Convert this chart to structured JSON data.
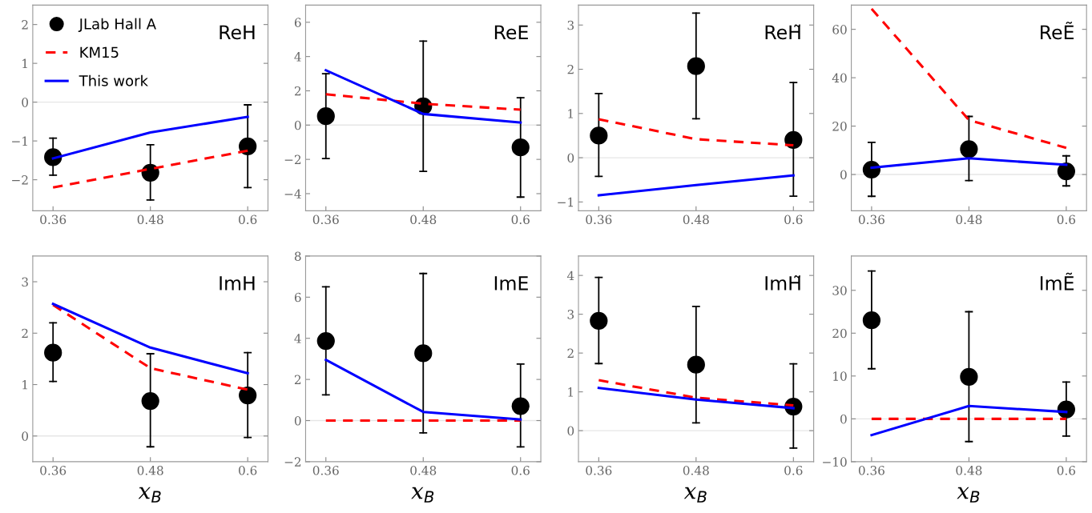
{
  "chart_data": [
    {
      "type": "scatter",
      "title": "ReH",
      "x": [
        0.36,
        0.48,
        0.6
      ],
      "xlim": [
        0.335,
        0.625
      ],
      "xticks": [
        0.36,
        0.48,
        0.6
      ],
      "ylim": [
        -2.8,
        2.5
      ],
      "yticks": [
        {
          "value": -2,
          "label": "−2"
        },
        {
          "value": -1,
          "label": "−1"
        },
        0,
        1,
        2
      ],
      "legend": "top left",
      "ref_lines": [
        {
          "axis": "y",
          "value": 0,
          "color": "#e6e6e6"
        }
      ],
      "series": [
        {
          "name": "JLab Hall A",
          "marker": "circle",
          "color": "#000000",
          "values": [
            -1.42,
            -1.82,
            -1.14
          ],
          "errors": [
            [
              -1.88,
              -0.93
            ],
            [
              -2.52,
              -1.1
            ],
            [
              -2.2,
              -0.07
            ]
          ]
        },
        {
          "name": "KM15",
          "type": "line",
          "color": "#ff0000",
          "line_style": "dashed",
          "values": [
            -2.2,
            -1.72,
            -1.25
          ]
        },
        {
          "name": "This work",
          "type": "line",
          "color": "#0000ff",
          "line_style": "solid",
          "values": [
            -1.45,
            -0.78,
            -0.38
          ]
        }
      ]
    },
    {
      "type": "scatter",
      "title": "ReE",
      "x": [
        0.36,
        0.48,
        0.6
      ],
      "xlim": [
        0.335,
        0.625
      ],
      "xticks": [
        0.36,
        0.48,
        0.6
      ],
      "ylim": [
        -5,
        7
      ],
      "yticks": [
        {
          "value": -4,
          "label": "−4"
        },
        {
          "value": -2,
          "label": "−2"
        },
        0,
        2,
        4,
        6
      ],
      "ref_lines": [
        {
          "axis": "y",
          "value": 0,
          "color": "#e6e6e6"
        }
      ],
      "series": [
        {
          "marker": "circle",
          "color": "#000000",
          "values": [
            0.52,
            1.1,
            -1.3
          ],
          "errors": [
            [
              -1.95,
              3.0
            ],
            [
              -2.7,
              4.9
            ],
            [
              -4.2,
              1.6
            ]
          ]
        },
        {
          "type": "line",
          "color": "#ff0000",
          "line_style": "dashed",
          "values": [
            1.8,
            1.25,
            0.9
          ]
        },
        {
          "type": "line",
          "color": "#0000ff",
          "line_style": "solid",
          "values": [
            3.2,
            0.65,
            0.15
          ]
        }
      ]
    },
    {
      "type": "scatter",
      "title": "ReH̃",
      "x": [
        0.36,
        0.48,
        0.6
      ],
      "xlim": [
        0.335,
        0.625
      ],
      "xticks": [
        0.36,
        0.48,
        0.6
      ],
      "ylim": [
        -1.2,
        3.45
      ],
      "yticks": [
        {
          "value": -1,
          "label": "−1"
        },
        0,
        1,
        2,
        3
      ],
      "ref_lines": [
        {
          "axis": "y",
          "value": 0,
          "color": "#e6e6e6"
        }
      ],
      "series": [
        {
          "marker": "circle",
          "color": "#000000",
          "values": [
            0.5,
            2.07,
            0.4
          ],
          "errors": [
            [
              -0.42,
              1.45
            ],
            [
              0.88,
              3.27
            ],
            [
              -0.87,
              1.7
            ]
          ]
        },
        {
          "type": "line",
          "color": "#ff0000",
          "line_style": "dashed",
          "values": [
            0.87,
            0.42,
            0.28
          ]
        },
        {
          "type": "line",
          "color": "#0000ff",
          "line_style": "solid",
          "values": [
            -0.85,
            -0.62,
            -0.4
          ]
        }
      ]
    },
    {
      "type": "scatter",
      "title": "ReẼ",
      "x": [
        0.36,
        0.48,
        0.6
      ],
      "xlim": [
        0.335,
        0.625
      ],
      "xticks": [
        0.36,
        0.48,
        0.6
      ],
      "ylim": [
        -15,
        70
      ],
      "yticks": [
        0,
        20,
        40,
        60
      ],
      "ref_lines": [
        {
          "axis": "y",
          "value": 0,
          "color": "#e6e6e6"
        }
      ],
      "series": [
        {
          "marker": "circle",
          "color": "#000000",
          "values": [
            2,
            10.5,
            1.3
          ],
          "errors": [
            [
              -9,
              13.3
            ],
            [
              -2.5,
              24
            ],
            [
              -4.7,
              7.7
            ]
          ]
        },
        {
          "type": "line",
          "color": "#ff0000",
          "line_style": "dashed",
          "values": [
            68.5,
            22.5,
            11
          ]
        },
        {
          "type": "line",
          "color": "#0000ff",
          "line_style": "solid",
          "values": [
            2.8,
            6.7,
            4
          ]
        }
      ]
    },
    {
      "type": "scatter",
      "title": "ImH",
      "xlabel": "x$_{B}$",
      "x": [
        0.36,
        0.48,
        0.6
      ],
      "xlim": [
        0.335,
        0.625
      ],
      "xticks": [
        0.36,
        0.48,
        0.6
      ],
      "ylim": [
        -0.5,
        3.5
      ],
      "yticks": [
        0,
        1,
        2,
        3
      ],
      "ref_lines": [
        {
          "axis": "y",
          "value": 0,
          "color": "#e6e6e6"
        }
      ],
      "series": [
        {
          "marker": "circle",
          "color": "#000000",
          "values": [
            1.62,
            0.68,
            0.79
          ],
          "errors": [
            [
              1.06,
              2.2
            ],
            [
              -0.21,
              1.6
            ],
            [
              -0.03,
              1.62
            ]
          ]
        },
        {
          "type": "line",
          "color": "#ff0000",
          "line_style": "dashed",
          "values": [
            2.55,
            1.32,
            0.9
          ]
        },
        {
          "type": "line",
          "color": "#0000ff",
          "line_style": "solid",
          "values": [
            2.57,
            1.72,
            1.22
          ]
        }
      ]
    },
    {
      "type": "scatter",
      "title": "ImE",
      "xlabel": "x$_{B}$",
      "x": [
        0.36,
        0.48,
        0.6
      ],
      "xlim": [
        0.335,
        0.625
      ],
      "xticks": [
        0.36,
        0.48,
        0.6
      ],
      "ylim": [
        -2,
        8
      ],
      "yticks": [
        {
          "value": -2,
          "label": "−2"
        },
        0,
        2,
        4,
        6,
        8
      ],
      "ref_lines": [
        {
          "axis": "y",
          "value": 0,
          "color": "#e6e6e6"
        }
      ],
      "series": [
        {
          "marker": "circle",
          "color": "#000000",
          "values": [
            3.87,
            3.27,
            0.7
          ],
          "errors": [
            [
              1.25,
              6.5
            ],
            [
              -0.6,
              7.15
            ],
            [
              -1.28,
              2.75
            ]
          ]
        },
        {
          "type": "line",
          "color": "#ff0000",
          "line_style": "dashed",
          "values": [
            0,
            0,
            0
          ]
        },
        {
          "type": "line",
          "color": "#0000ff",
          "line_style": "solid",
          "values": [
            2.95,
            0.42,
            0.05
          ]
        }
      ]
    },
    {
      "type": "scatter",
      "title": "ImH̃",
      "xlabel": "x$_{B}$",
      "x": [
        0.36,
        0.48,
        0.6
      ],
      "xlim": [
        0.335,
        0.625
      ],
      "xticks": [
        0.36,
        0.48,
        0.6
      ],
      "ylim": [
        -0.8,
        4.5
      ],
      "yticks": [
        0,
        1,
        2,
        3,
        4
      ],
      "ref_lines": [
        {
          "axis": "y",
          "value": 0,
          "color": "#e6e6e6"
        }
      ],
      "series": [
        {
          "marker": "circle",
          "color": "#000000",
          "values": [
            2.83,
            1.7,
            0.62
          ],
          "errors": [
            [
              1.73,
              3.95
            ],
            [
              0.2,
              3.2
            ],
            [
              -0.45,
              1.72
            ]
          ]
        },
        {
          "type": "line",
          "color": "#ff0000",
          "line_style": "dashed",
          "values": [
            1.3,
            0.85,
            0.65
          ]
        },
        {
          "type": "line",
          "color": "#0000ff",
          "line_style": "solid",
          "values": [
            1.1,
            0.8,
            0.58
          ]
        }
      ]
    },
    {
      "type": "scatter",
      "title": "ImẼ",
      "xlabel": "x$_{B}$",
      "x": [
        0.36,
        0.48,
        0.6
      ],
      "xlim": [
        0.335,
        0.625
      ],
      "xticks": [
        0.36,
        0.48,
        0.6
      ],
      "ylim": [
        -10,
        38
      ],
      "yticks": [
        {
          "value": -10,
          "label": "−10"
        },
        0,
        10,
        20,
        30
      ],
      "ref_lines": [
        {
          "axis": "y",
          "value": 0,
          "color": "#e6e6e6"
        }
      ],
      "series": [
        {
          "marker": "circle",
          "color": "#000000",
          "values": [
            23,
            9.8,
            2.2
          ],
          "errors": [
            [
              11.7,
              34.5
            ],
            [
              -5.3,
              25
            ],
            [
              -4,
              8.6
            ]
          ]
        },
        {
          "type": "line",
          "color": "#ff0000",
          "line_style": "dashed",
          "values": [
            0,
            0,
            0
          ]
        },
        {
          "type": "line",
          "color": "#0000ff",
          "line_style": "solid",
          "values": [
            -3.8,
            3,
            1.6
          ]
        }
      ]
    }
  ]
}
